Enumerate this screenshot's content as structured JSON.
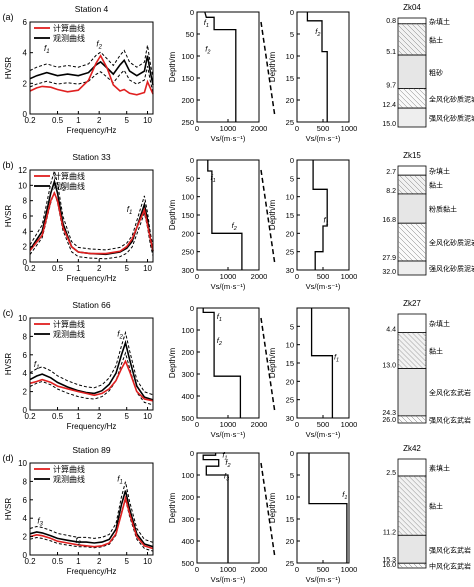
{
  "chart_data": [
    {
      "type": "line",
      "panel": "(a)",
      "station": "Station 4",
      "xlabel": "Frequency/Hz",
      "ylabel": "HVSR",
      "xscale": "log",
      "xlim": [
        0.2,
        12
      ],
      "ylim": [
        0,
        6
      ],
      "xticks": [
        0.2,
        0.5,
        1,
        2,
        5,
        10
      ],
      "yticks": [
        0,
        2,
        4,
        6
      ],
      "legend": [
        "计算曲线",
        "观测曲线"
      ],
      "annotations": [
        {
          "text": "f1",
          "x": 0.35,
          "y": 4.1
        },
        {
          "text": "f2",
          "x": 2.0,
          "y": 4.4
        }
      ],
      "series": [
        {
          "name": "计算曲线",
          "color": "#e02020",
          "x": [
            0.2,
            0.25,
            0.3,
            0.4,
            0.5,
            0.7,
            1.0,
            1.4,
            1.8,
            2.1,
            2.6,
            3.2,
            4.0,
            4.6,
            5.5,
            7,
            9,
            10,
            12
          ],
          "y": [
            1.5,
            1.7,
            1.8,
            1.75,
            1.6,
            1.45,
            1.55,
            2.2,
            3.3,
            3.8,
            3.0,
            1.9,
            1.5,
            1.6,
            1.35,
            1.25,
            1.4,
            2.1,
            1.3
          ]
        },
        {
          "name": "观测曲线",
          "color": "#000000",
          "x": [
            0.2,
            0.25,
            0.35,
            0.5,
            0.7,
            1.0,
            1.4,
            1.8,
            2.1,
            2.6,
            3.2,
            4.0,
            4.6,
            5.5,
            7,
            9,
            10,
            11,
            12
          ],
          "y": [
            2.3,
            2.5,
            2.7,
            2.5,
            2.6,
            2.5,
            2.7,
            3.2,
            3.4,
            3.0,
            2.6,
            3.2,
            3.5,
            2.8,
            2.5,
            2.8,
            3.8,
            2.7,
            1.9
          ]
        }
      ],
      "band": {
        "upper_offset": 0.6,
        "lower_offset": 0.6
      }
    },
    {
      "type": "line",
      "panel": "(a)",
      "xlabel": "Vs/(m·s⁻¹)",
      "ylabel": "Depth/m",
      "xlim": [
        0,
        2000
      ],
      "ylim": [
        0,
        250
      ],
      "yticks": [
        0,
        50,
        100,
        150,
        200,
        250
      ],
      "xticks": [
        0,
        1000,
        2000
      ],
      "annotations": [
        {
          "text": "f1",
          "x": 300,
          "y": 30
        },
        {
          "text": "f2",
          "x": 350,
          "y": 90
        }
      ],
      "profile": {
        "vs": [
          250,
          300,
          550,
          550,
          1250,
          1250
        ],
        "depth": [
          0,
          12,
          12,
          40,
          40,
          250
        ]
      }
    },
    {
      "type": "line",
      "panel": "(a)",
      "xlabel": "Vs/(m·s⁻¹)",
      "ylabel": "Depth/m",
      "xlim": [
        0,
        1000
      ],
      "ylim": [
        0,
        25
      ],
      "yticks": [
        0,
        5,
        10,
        15,
        20,
        25
      ],
      "xticks": [
        0,
        500,
        1000
      ],
      "annotations": [
        {
          "text": "f2",
          "x": 400,
          "y": 5
        }
      ],
      "profile": {
        "vs": [
          200,
          200,
          480,
          480,
          580,
          580
        ],
        "depth": [
          0,
          2,
          2,
          9,
          9,
          25
        ]
      }
    },
    {
      "type": "table",
      "panel": "(a)",
      "borehole": "Zk04",
      "layers": [
        {
          "depth": "0.8",
          "name": "杂填土"
        },
        {
          "depth": "5.1",
          "name": "黏土"
        },
        {
          "depth": "9.7",
          "name": "粗砂"
        },
        {
          "depth": "12.4",
          "name": "全风化砂质泥岩"
        },
        {
          "depth": "15.0",
          "name": "强风化砂质泥岩"
        }
      ]
    },
    {
      "type": "line",
      "panel": "(b)",
      "station": "Station 33",
      "xlabel": "Frequency/Hz",
      "ylabel": "HVSR",
      "xscale": "log",
      "xlim": [
        0.2,
        12
      ],
      "ylim": [
        0,
        12
      ],
      "xticks": [
        0.2,
        0.5,
        1,
        2,
        5,
        10
      ],
      "yticks": [
        0,
        2,
        4,
        6,
        8,
        10,
        12
      ],
      "legend": [
        "计算曲线",
        "观测曲线"
      ],
      "annotations": [
        {
          "text": "f2",
          "x": 0.6,
          "y": 9.5
        },
        {
          "text": "f1",
          "x": 5.5,
          "y": 6.5
        }
      ],
      "series": [
        {
          "name": "计算曲线",
          "color": "#e02020",
          "x": [
            0.2,
            0.3,
            0.4,
            0.45,
            0.5,
            0.6,
            0.8,
            1.0,
            1.5,
            2.5,
            4,
            5,
            6,
            7,
            9,
            11,
            12
          ],
          "y": [
            1.5,
            3.5,
            8.0,
            9.0,
            8.0,
            4.5,
            2.0,
            1.3,
            1.1,
            1.1,
            1.4,
            2.0,
            3.0,
            4.5,
            6.8,
            3.0,
            1.5
          ]
        },
        {
          "name": "观测曲线",
          "color": "#000000",
          "x": [
            0.2,
            0.3,
            0.4,
            0.45,
            0.5,
            0.6,
            0.8,
            1.0,
            1.5,
            2.5,
            4,
            5,
            6,
            7,
            9,
            10,
            11,
            12
          ],
          "y": [
            1.6,
            4.0,
            9.0,
            10.5,
            9.0,
            5.0,
            2.0,
            1.3,
            1.1,
            1.0,
            1.3,
            1.8,
            2.7,
            4.5,
            7.5,
            5.5,
            3.0,
            1.4
          ]
        }
      ],
      "band": {
        "upper_offset": 1.0,
        "lower_offset": 1.0
      }
    },
    {
      "type": "line",
      "panel": "(b)",
      "xlabel": "Vs/(m·s⁻¹)",
      "ylabel": "Depth/m",
      "xlim": [
        0,
        2000
      ],
      "ylim": [
        0,
        300
      ],
      "yticks": [
        0,
        50,
        100,
        150,
        200,
        250,
        300
      ],
      "xticks": [
        0,
        1000,
        2000
      ],
      "annotations": [
        {
          "text": "f1",
          "x": 520,
          "y": 55
        },
        {
          "text": "f2",
          "x": 1200,
          "y": 185
        }
      ],
      "profile": {
        "vs": [
          350,
          350,
          480,
          480,
          1450,
          1450
        ],
        "depth": [
          0,
          30,
          30,
          200,
          200,
          300
        ]
      }
    },
    {
      "type": "line",
      "panel": "(b)",
      "xlabel": "Vs/(m·s⁻¹)",
      "ylabel": "Depth/m",
      "xlim": [
        0,
        1000
      ],
      "ylim": [
        0,
        30
      ],
      "yticks": [
        0,
        5,
        10,
        15,
        20,
        25,
        30
      ],
      "xticks": [
        0,
        500,
        1000
      ],
      "annotations": [
        {
          "text": "f1",
          "x": 560,
          "y": 17
        }
      ],
      "profile": {
        "vs": [
          310,
          310,
          580,
          580,
          500,
          500,
          350,
          350
        ],
        "depth": [
          0,
          8,
          8,
          18,
          18,
          25,
          25,
          30
        ]
      }
    },
    {
      "type": "table",
      "panel": "(b)",
      "borehole": "Zk15",
      "layers": [
        {
          "depth": "2.7",
          "name": "杂填土"
        },
        {
          "depth": "8.2",
          "name": "黏土"
        },
        {
          "depth": "16.8",
          "name": "粉质黏土"
        },
        {
          "depth": "27.9",
          "name": "全风化砂质泥岩"
        },
        {
          "depth": "32.0",
          "name": "强风化砂质泥岩"
        }
      ]
    },
    {
      "type": "line",
      "panel": "(c)",
      "station": "Station 66",
      "xlabel": "Frequency/Hz",
      "ylabel": "HVSR",
      "xscale": "log",
      "xlim": [
        0.2,
        12
      ],
      "ylim": [
        0,
        10
      ],
      "xticks": [
        0.2,
        0.5,
        1,
        2,
        5,
        10
      ],
      "yticks": [
        0,
        2,
        4,
        6,
        8,
        10
      ],
      "legend": [
        "计算曲线",
        "观测曲线"
      ],
      "annotations": [
        {
          "text": "f1",
          "x": 0.25,
          "y": 4.7
        },
        {
          "text": "f2",
          "x": 4.0,
          "y": 8.0
        }
      ],
      "series": [
        {
          "name": "计算曲线",
          "color": "#e02020",
          "x": [
            0.2,
            0.25,
            0.3,
            0.4,
            0.5,
            0.7,
            1.0,
            1.3,
            1.7,
            2.2,
            2.8,
            3.5,
            4.2,
            4.8,
            5.5,
            7,
            9,
            12
          ],
          "y": [
            2.9,
            3.1,
            3.3,
            3.0,
            2.6,
            2.3,
            2.0,
            1.8,
            1.6,
            1.8,
            2.3,
            3.2,
            4.5,
            5.3,
            4.2,
            2.0,
            1.2,
            1.0
          ]
        },
        {
          "name": "观测曲线",
          "color": "#000000",
          "x": [
            0.2,
            0.25,
            0.3,
            0.4,
            0.5,
            0.7,
            1.0,
            1.3,
            1.7,
            2.2,
            2.8,
            3.5,
            4.2,
            4.8,
            5.5,
            7,
            9,
            12
          ],
          "y": [
            3.3,
            3.7,
            3.9,
            3.5,
            3.0,
            2.5,
            2.1,
            1.9,
            1.8,
            2.1,
            2.8,
            4.0,
            6.0,
            7.3,
            5.5,
            2.6,
            1.4,
            1.1
          ]
        }
      ],
      "band": {
        "upper_offset": 0.9,
        "lower_offset": 0.9
      }
    },
    {
      "type": "line",
      "panel": "(c)",
      "xlabel": "Vs/(m·s⁻¹)",
      "ylabel": "Depth/m",
      "xlim": [
        0,
        2000
      ],
      "ylim": [
        0,
        500
      ],
      "yticks": [
        0,
        100,
        200,
        300,
        400,
        500
      ],
      "xticks": [
        0,
        1000,
        2000
      ],
      "annotations": [
        {
          "text": "f1",
          "x": 720,
          "y": 50
        },
        {
          "text": "f2",
          "x": 720,
          "y": 160
        }
      ],
      "profile": {
        "vs": [
          200,
          200,
          550,
          550,
          1400,
          1400
        ],
        "depth": [
          0,
          20,
          20,
          310,
          310,
          500
        ]
      }
    },
    {
      "type": "line",
      "panel": "(c)",
      "xlabel": "Vs/(m·s⁻¹)",
      "ylabel": "Depth/m",
      "xlim": [
        0,
        1000
      ],
      "ylim": [
        0,
        30
      ],
      "yticks": [
        5,
        10,
        15,
        20,
        25,
        30
      ],
      "xticks": [
        0,
        500,
        1000
      ],
      "annotations": [
        {
          "text": "f1",
          "x": 760,
          "y": 14
        }
      ],
      "profile": {
        "vs": [
          280,
          280,
          680,
          680
        ],
        "depth": [
          0,
          13,
          13,
          30
        ]
      }
    },
    {
      "type": "table",
      "panel": "(c)",
      "borehole": "Zk27",
      "layers": [
        {
          "depth": "4.4",
          "name": "杂填土"
        },
        {
          "depth": "13.0",
          "name": "黏土"
        },
        {
          "depth": "24.3",
          "name": "全风化玄武岩"
        },
        {
          "depth": "26.0",
          "name": "强风化玄武岩"
        }
      ]
    },
    {
      "type": "line",
      "panel": "(d)",
      "station": "Station 89",
      "xlabel": "Frequency/Hz",
      "ylabel": "HVSR",
      "xscale": "log",
      "xlim": [
        0.2,
        12
      ],
      "ylim": [
        0,
        10
      ],
      "xticks": [
        0.2,
        0.5,
        1,
        2,
        5,
        10
      ],
      "yticks": [
        0,
        2,
        4,
        6,
        8,
        10
      ],
      "legend": [
        "计算曲线",
        "观测曲线"
      ],
      "annotations": [
        {
          "text": "f3",
          "x": 0.28,
          "y": 3.4
        },
        {
          "text": "f2",
          "x": 1.0,
          "y": 1.3
        },
        {
          "text": "f1",
          "x": 4.0,
          "y": 8.0
        }
      ],
      "series": [
        {
          "name": "计算曲线",
          "color": "#e02020",
          "x": [
            0.2,
            0.25,
            0.3,
            0.4,
            0.5,
            0.7,
            1.0,
            1.3,
            1.7,
            2.2,
            2.8,
            3.5,
            4.2,
            4.8,
            5.5,
            7,
            9,
            12
          ],
          "y": [
            2.0,
            2.2,
            2.1,
            1.8,
            1.5,
            1.3,
            1.1,
            1.0,
            0.9,
            1.0,
            1.3,
            2.3,
            4.5,
            6.2,
            4.5,
            2.0,
            1.0,
            0.7
          ]
        },
        {
          "name": "观测曲线",
          "color": "#000000",
          "x": [
            0.2,
            0.25,
            0.3,
            0.4,
            0.5,
            0.7,
            1.0,
            1.3,
            1.7,
            2.2,
            2.8,
            3.5,
            4.2,
            4.8,
            5.5,
            7,
            9,
            12
          ],
          "y": [
            2.3,
            2.5,
            2.4,
            2.1,
            1.8,
            1.6,
            1.4,
            1.4,
            1.3,
            1.4,
            1.7,
            2.8,
            5.5,
            7.0,
            5.0,
            2.3,
            1.2,
            0.9
          ]
        }
      ],
      "band": {
        "upper_offset": 0.8,
        "lower_offset": 0.8
      }
    },
    {
      "type": "line",
      "panel": "(d)",
      "xlabel": "Vs/(m·s⁻¹)",
      "ylabel": "Depth/m",
      "xlim": [
        0,
        2000
      ],
      "ylim": [
        0,
        500
      ],
      "yticks": [
        0,
        100,
        200,
        300,
        400,
        500
      ],
      "xticks": [
        0,
        1000,
        2000
      ],
      "annotations": [
        {
          "text": "f1",
          "x": 900,
          "y": 20
        },
        {
          "text": "f2",
          "x": 1000,
          "y": 55
        },
        {
          "text": "f3",
          "x": 950,
          "y": 115
        }
      ],
      "profile": {
        "vs": [
          600,
          600,
          200,
          200,
          700,
          700,
          300,
          300,
          1000,
          1000
        ],
        "depth": [
          0,
          10,
          10,
          30,
          30,
          60,
          60,
          100,
          100,
          500
        ]
      }
    },
    {
      "type": "line",
      "panel": "(d)",
      "xlabel": "Vs/(m·s⁻¹)",
      "ylabel": "Depth/m",
      "xlim": [
        0,
        1000
      ],
      "ylim": [
        0,
        25
      ],
      "yticks": [
        0,
        5,
        10,
        15,
        20,
        25
      ],
      "xticks": [
        0,
        500,
        1000
      ],
      "annotations": [
        {
          "text": "f1",
          "x": 920,
          "y": 10
        }
      ],
      "profile": {
        "vs": [
          230,
          230,
          960,
          960
        ],
        "depth": [
          0,
          11.5,
          11.5,
          25
        ]
      }
    },
    {
      "type": "table",
      "panel": "(d)",
      "borehole": "Zk42",
      "layers": [
        {
          "depth": "2.5",
          "name": "素填土"
        },
        {
          "depth": "11.2",
          "name": "黏土"
        },
        {
          "depth": "15.3",
          "name": "强风化玄武岩"
        },
        {
          "depth": "16.0",
          "name": "中风化玄武岩"
        }
      ]
    }
  ]
}
